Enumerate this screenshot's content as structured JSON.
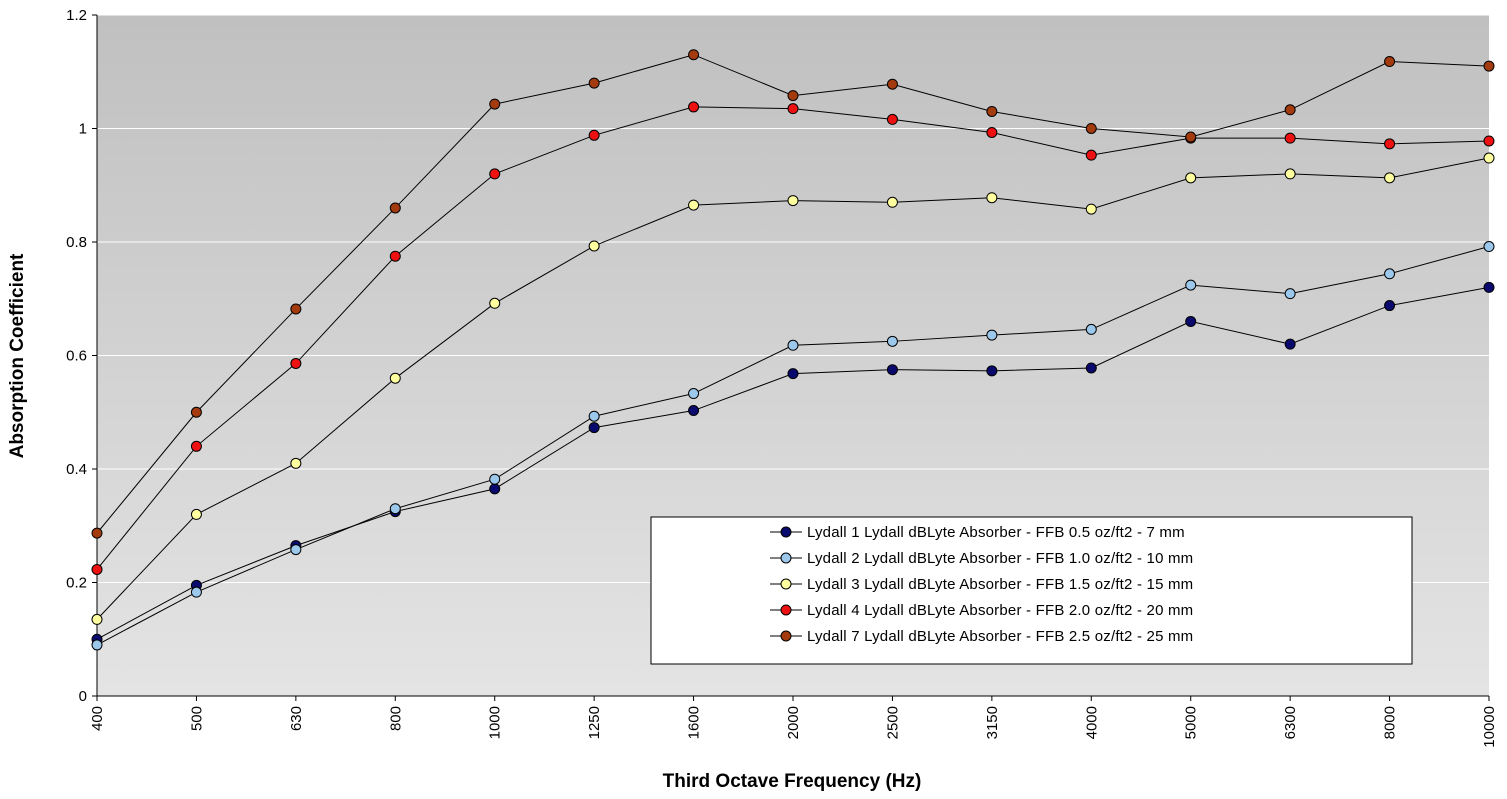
{
  "chart_data": {
    "type": "line",
    "title": "",
    "xlabel": "Third Octave Frequency (Hz)",
    "ylabel": "Absorption Coefficient",
    "categories": [
      "400",
      "500",
      "630",
      "800",
      "1000",
      "1250",
      "1600",
      "2000",
      "2500",
      "3150",
      "4000",
      "5000",
      "6300",
      "8000",
      "10000"
    ],
    "ylim": [
      0,
      1.2
    ],
    "yticks": [
      "0",
      "0.2",
      "0.4",
      "0.6",
      "0.8",
      "1",
      "1.2"
    ],
    "grid": "horizontal",
    "legend_position": "bottom-right",
    "plot_background": "vertical gradient light gray to dark gray",
    "series": [
      {
        "name": "Lydall 1 Lydall dBLyte Absorber - FFB 0.5 oz/ft2 - 7 mm",
        "color": "#0a0a6e",
        "values": [
          0.1,
          0.195,
          0.265,
          0.325,
          0.365,
          0.473,
          0.503,
          0.568,
          0.575,
          0.573,
          0.578,
          0.66,
          0.62,
          0.688,
          0.72
        ]
      },
      {
        "name": "Lydall 2 Lydall dBLyte Absorber - FFB 1.0 oz/ft2 - 10 mm",
        "color": "#9cc8ec",
        "values": [
          0.09,
          0.183,
          0.258,
          0.33,
          0.382,
          0.493,
          0.533,
          0.618,
          0.625,
          0.636,
          0.646,
          0.724,
          0.709,
          0.744,
          0.792
        ]
      },
      {
        "name": "Lydall 3 Lydall dBLyte Absorber - FFB 1.5 oz/ft2 - 15 mm",
        "color": "#ffffa0",
        "values": [
          0.135,
          0.32,
          0.41,
          0.56,
          0.692,
          0.793,
          0.865,
          0.873,
          0.87,
          0.878,
          0.858,
          0.913,
          0.92,
          0.913,
          0.948
        ]
      },
      {
        "name": "Lydall 4 Lydall dBLyte Absorber - FFB 2.0 oz/ft2 - 20 mm",
        "color": "#ee1111",
        "values": [
          0.223,
          0.44,
          0.586,
          0.775,
          0.92,
          0.988,
          1.038,
          1.035,
          1.016,
          0.993,
          0.953,
          0.983,
          0.983,
          0.973,
          0.978
        ]
      },
      {
        "name": "Lydall 7 Lydall dBLyte Absorber - FFB 2.5 oz/ft2 - 25 mm",
        "color": "#a33b0e",
        "values": [
          0.287,
          0.5,
          0.682,
          0.86,
          1.043,
          1.08,
          1.13,
          1.058,
          1.078,
          1.03,
          1.0,
          0.985,
          1.033,
          1.118,
          1.11
        ]
      }
    ]
  }
}
